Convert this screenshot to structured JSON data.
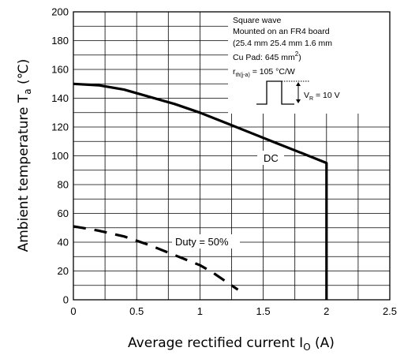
{
  "chart_data": {
    "type": "line",
    "xlabel": "Average rectified current I",
    "xlabel_sub": "O",
    "xlabel_unit": " (A)",
    "ylabel": "Ambient temperature T",
    "ylabel_sub": "a",
    "ylabel_unit": " (℃)",
    "xlim": [
      0,
      2.5
    ],
    "ylim": [
      0,
      200
    ],
    "x_ticks": [
      "0",
      "0.5",
      "1",
      "1.5",
      "2",
      "2.5"
    ],
    "y_ticks": [
      "0",
      "20",
      "40",
      "60",
      "80",
      "100",
      "120",
      "140",
      "160",
      "180",
      "200"
    ],
    "grid": true,
    "series": [
      {
        "name": "DC",
        "x": [
          0,
          0.2,
          0.4,
          0.6,
          0.8,
          1.0,
          1.2,
          1.4,
          1.6,
          1.8,
          2.0,
          2.0
        ],
        "y": [
          150,
          149,
          146,
          141,
          136,
          130,
          123,
          116,
          109,
          102,
          95,
          0
        ]
      },
      {
        "name": "Duty = 50%",
        "x": [
          0,
          0.2,
          0.4,
          0.6,
          0.8,
          1.0,
          1.1,
          1.2,
          1.3
        ],
        "y": [
          51,
          48,
          44,
          38,
          31,
          24,
          19,
          13,
          7
        ]
      }
    ],
    "annotation_box": {
      "line1": "Square wave",
      "line2": "Mounted  on an FR4 board",
      "line3": "(25.4 mm      25.4 mm      1.6 mm",
      "line4": "Cu Pad: 645 mm",
      "line4_sup": "2",
      "line4_end": ")",
      "rth": "r",
      "rth_sub": "th(j-a)",
      "rth_val": " = 105 °C/W",
      "vr": "V",
      "vr_sub": "R",
      "vr_val": " = 10 V"
    }
  }
}
